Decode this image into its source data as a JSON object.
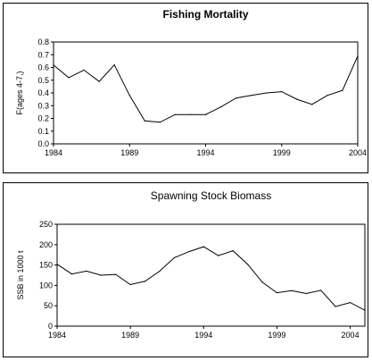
{
  "chart_data": [
    {
      "type": "line",
      "title": "Fishing Mortality",
      "xlabel": "",
      "ylabel": "F(ages 4-7,)",
      "xlim": [
        1984,
        2004
      ],
      "ylim": [
        0,
        0.8
      ],
      "x_ticks": [
        1984,
        1989,
        1994,
        1999,
        2004
      ],
      "y_ticks": [
        0.0,
        0.1,
        0.2,
        0.3,
        0.4,
        0.5,
        0.6,
        0.7,
        0.8
      ],
      "y_tick_labels": [
        "0.0",
        "0.1",
        "0.2",
        "0.3",
        "0.4",
        "0.5",
        "0.6",
        "0.7",
        "0.8"
      ],
      "grid": false,
      "series": [
        {
          "x": [
            1984,
            1985,
            1986,
            1987,
            1988,
            1989,
            1990,
            1991,
            1992,
            1993,
            1994,
            1995,
            1996,
            1997,
            1998,
            1999,
            2000,
            2001,
            2002,
            2003,
            2004
          ],
          "values": [
            0.62,
            0.52,
            0.58,
            0.49,
            0.62,
            0.38,
            0.18,
            0.17,
            0.23,
            0.23,
            0.23,
            0.29,
            0.36,
            0.38,
            0.4,
            0.41,
            0.35,
            0.31,
            0.38,
            0.42,
            0.69
          ]
        }
      ]
    },
    {
      "type": "line",
      "title": "Spawning Stock Biomass",
      "xlabel": "",
      "ylabel": "SSB in 1000 t",
      "xlim": [
        1984,
        2005
      ],
      "ylim": [
        0,
        250
      ],
      "x_ticks": [
        1984,
        1989,
        1994,
        1999,
        2004
      ],
      "y_ticks": [
        0,
        50,
        100,
        150,
        200,
        250
      ],
      "y_tick_labels": [
        "0",
        "50",
        "100",
        "150",
        "200",
        "250"
      ],
      "grid": false,
      "series": [
        {
          "x": [
            1984,
            1985,
            1986,
            1987,
            1988,
            1989,
            1990,
            1991,
            1992,
            1993,
            1994,
            1995,
            1996,
            1997,
            1998,
            1999,
            2000,
            2001,
            2002,
            2003,
            2004,
            2005
          ],
          "values": [
            152,
            128,
            135,
            125,
            127,
            102,
            110,
            135,
            168,
            183,
            195,
            173,
            185,
            152,
            108,
            82,
            87,
            80,
            88,
            48,
            58,
            39
          ]
        }
      ]
    }
  ]
}
